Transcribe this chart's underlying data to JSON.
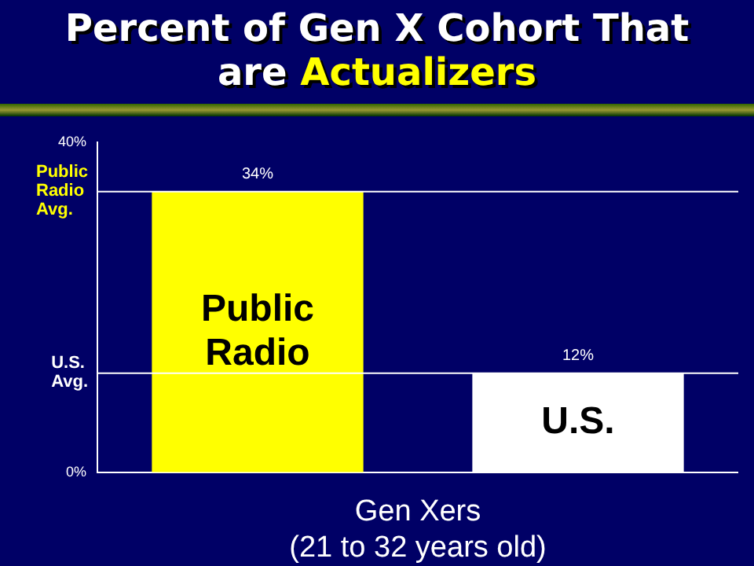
{
  "chart_data": {
    "type": "bar",
    "title": "Percent of Gen X Cohort That are Actualizers",
    "categories": [
      "Public Radio",
      "U.S."
    ],
    "values": [
      34,
      12
    ],
    "colors": [
      "#ffff00",
      "#ffffff"
    ],
    "value_labels": [
      "34%",
      "12%"
    ],
    "xlabel": "Gen Xers\n(21 to 32 years old)",
    "ylim": [
      0,
      40
    ],
    "yticks": [
      {
        "value": 0,
        "label": "0%"
      },
      {
        "value": 40,
        "label": "40%"
      }
    ],
    "ref_lines": [
      {
        "axis": "y",
        "value": 34,
        "label": "Public Radio Avg.",
        "color": "#ffffff"
      },
      {
        "axis": "y",
        "value": 12,
        "label": "U.S. Avg.",
        "color": "#ffffff"
      }
    ],
    "grid": false,
    "legend": false
  }
}
